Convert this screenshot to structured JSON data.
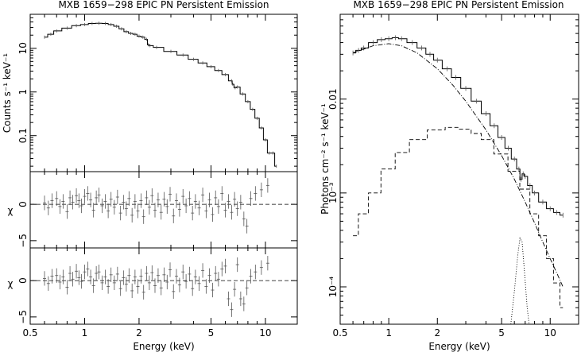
{
  "chart_data": [
    {
      "id": "left-spectrum",
      "type": "line",
      "title": "MXB 1659−298    EPIC PN    Persistent Emission",
      "xlabel": "",
      "ylabel": "Counts s⁻¹ keV⁻¹",
      "x_scale": "log",
      "y_scale": "log",
      "xlim": [
        0.5,
        15
      ],
      "ylim": [
        0.015,
        60
      ],
      "y_ticks": [
        0.1,
        1,
        10
      ],
      "y_tick_labels": [
        "0.1",
        "1",
        "10"
      ],
      "series": [
        {
          "points": [
            [
              0.6,
              18
            ],
            [
              0.65,
              21
            ],
            [
              0.7,
              25
            ],
            [
              0.8,
              29
            ],
            [
              0.9,
              33
            ],
            [
              1.0,
              35
            ],
            [
              1.1,
              37
            ],
            [
              1.2,
              37.5
            ],
            [
              1.3,
              37
            ],
            [
              1.4,
              35
            ],
            [
              1.5,
              32
            ],
            [
              1.6,
              28
            ],
            [
              1.7,
              24
            ],
            [
              1.8,
              22
            ],
            [
              1.9,
              21
            ],
            [
              2.0,
              19
            ],
            [
              2.1,
              18
            ],
            [
              2.2,
              16
            ],
            [
              2.25,
              12
            ],
            [
              2.3,
              11.5
            ],
            [
              2.5,
              10.5
            ],
            [
              3.0,
              8.5
            ],
            [
              3.5,
              7
            ],
            [
              4.0,
              5.6
            ],
            [
              4.5,
              4.6
            ],
            [
              5.0,
              3.8
            ],
            [
              5.5,
              3.1
            ],
            [
              6.0,
              2.5
            ],
            [
              6.5,
              1.8
            ],
            [
              6.6,
              1.5
            ],
            [
              6.8,
              1.25
            ],
            [
              7.0,
              1.3
            ],
            [
              7.5,
              0.9
            ],
            [
              8.0,
              0.6
            ],
            [
              8.5,
              0.4
            ],
            [
              9.0,
              0.25
            ],
            [
              9.5,
              0.15
            ],
            [
              10.0,
              0.08
            ],
            [
              10.5,
              0.04
            ],
            [
              11.0,
              0.04
            ],
            [
              11.5,
              0.02
            ]
          ]
        }
      ]
    },
    {
      "id": "left-residuals-1",
      "type": "scatter",
      "xlabel": "",
      "ylabel": "χ",
      "x_scale": "log",
      "xlim": [
        0.5,
        15
      ],
      "ylim": [
        -6,
        4.5
      ],
      "y_ticks": [
        -5,
        0
      ],
      "y_tick_labels": [
        "−5",
        "0"
      ],
      "residuals": [
        [
          0.6,
          0.2
        ],
        [
          0.63,
          -0.5
        ],
        [
          0.66,
          0.5
        ],
        [
          0.7,
          0.8
        ],
        [
          0.73,
          -0.3
        ],
        [
          0.76,
          0.4
        ],
        [
          0.8,
          -1.0
        ],
        [
          0.83,
          0.9
        ],
        [
          0.86,
          0.3
        ],
        [
          0.9,
          1.2
        ],
        [
          0.93,
          0.5
        ],
        [
          0.96,
          -0.2
        ],
        [
          1.0,
          1.1
        ],
        [
          1.04,
          1.5
        ],
        [
          1.08,
          0.6
        ],
        [
          1.12,
          -0.8
        ],
        [
          1.16,
          0.9
        ],
        [
          1.2,
          1.3
        ],
        [
          1.25,
          -0.2
        ],
        [
          1.3,
          0.4
        ],
        [
          1.35,
          -0.9
        ],
        [
          1.4,
          0.7
        ],
        [
          1.46,
          -0.4
        ],
        [
          1.52,
          1.0
        ],
        [
          1.58,
          -1.2
        ],
        [
          1.64,
          0.3
        ],
        [
          1.7,
          -0.6
        ],
        [
          1.76,
          0.8
        ],
        [
          1.83,
          -1.5
        ],
        [
          1.9,
          0.4
        ],
        [
          1.97,
          -0.9
        ],
        [
          2.05,
          0.5
        ],
        [
          2.12,
          -1.7
        ],
        [
          2.2,
          0.9
        ],
        [
          2.28,
          -0.4
        ],
        [
          2.36,
          1.2
        ],
        [
          2.45,
          -0.8
        ],
        [
          2.55,
          0.6
        ],
        [
          2.65,
          -1.1
        ],
        [
          2.75,
          0.7
        ],
        [
          2.86,
          -0.3
        ],
        [
          2.97,
          1.4
        ],
        [
          3.1,
          -1.6
        ],
        [
          3.22,
          0.5
        ],
        [
          3.35,
          -0.7
        ],
        [
          3.5,
          1.1
        ],
        [
          3.64,
          -0.2
        ],
        [
          3.8,
          0.8
        ],
        [
          3.95,
          -1.2
        ],
        [
          4.1,
          0.4
        ],
        [
          4.3,
          -0.5
        ],
        [
          4.5,
          1.3
        ],
        [
          4.7,
          -0.9
        ],
        [
          4.9,
          0.6
        ],
        [
          5.1,
          -1.4
        ],
        [
          5.3,
          0.9
        ],
        [
          5.5,
          -0.3
        ],
        [
          5.75,
          1.5
        ],
        [
          6.0,
          -0.8
        ],
        [
          6.25,
          0.4
        ],
        [
          6.5,
          -1.1
        ],
        [
          6.75,
          0.7
        ],
        [
          7.0,
          -0.6
        ],
        [
          7.3,
          0.3
        ],
        [
          7.6,
          -2.0
        ],
        [
          7.9,
          -3.0
        ],
        [
          8.3,
          0.8
        ],
        [
          8.8,
          1.5
        ],
        [
          9.5,
          2.0
        ],
        [
          10.3,
          2.6
        ]
      ]
    },
    {
      "id": "left-residuals-2",
      "type": "scatter",
      "xlabel": "Energy (keV)",
      "ylabel": "χ",
      "x_scale": "log",
      "xlim": [
        0.5,
        15
      ],
      "ylim": [
        -6,
        4.5
      ],
      "x_ticks": [
        0.5,
        1,
        2,
        5,
        10
      ],
      "x_tick_labels": [
        "0.5",
        "1",
        "2",
        "5",
        "10"
      ],
      "y_ticks": [
        -5,
        0
      ],
      "y_tick_labels": [
        "−5",
        "0"
      ],
      "residuals": [
        [
          0.6,
          0.3
        ],
        [
          0.63,
          -0.4
        ],
        [
          0.66,
          0.6
        ],
        [
          0.7,
          0.7
        ],
        [
          0.73,
          -0.2
        ],
        [
          0.76,
          0.5
        ],
        [
          0.8,
          -0.9
        ],
        [
          0.83,
          1.0
        ],
        [
          0.86,
          0.2
        ],
        [
          0.9,
          1.3
        ],
        [
          0.93,
          0.4
        ],
        [
          0.96,
          -0.1
        ],
        [
          1.0,
          1.2
        ],
        [
          1.04,
          1.6
        ],
        [
          1.08,
          0.5
        ],
        [
          1.12,
          -0.7
        ],
        [
          1.16,
          1.0
        ],
        [
          1.2,
          1.2
        ],
        [
          1.25,
          -0.3
        ],
        [
          1.3,
          0.5
        ],
        [
          1.35,
          -0.8
        ],
        [
          1.4,
          0.8
        ],
        [
          1.46,
          -0.3
        ],
        [
          1.52,
          0.9
        ],
        [
          1.58,
          -1.1
        ],
        [
          1.64,
          0.4
        ],
        [
          1.7,
          -0.5
        ],
        [
          1.76,
          0.7
        ],
        [
          1.83,
          -1.4
        ],
        [
          1.9,
          0.5
        ],
        [
          1.97,
          -0.8
        ],
        [
          2.05,
          0.6
        ],
        [
          2.12,
          -1.6
        ],
        [
          2.2,
          1.0
        ],
        [
          2.28,
          -0.3
        ],
        [
          2.36,
          1.1
        ],
        [
          2.45,
          -0.7
        ],
        [
          2.55,
          0.7
        ],
        [
          2.65,
          -1.0
        ],
        [
          2.75,
          0.8
        ],
        [
          2.86,
          -0.2
        ],
        [
          2.97,
          1.5
        ],
        [
          3.1,
          -1.5
        ],
        [
          3.22,
          0.6
        ],
        [
          3.35,
          -0.6
        ],
        [
          3.5,
          1.2
        ],
        [
          3.64,
          -0.1
        ],
        [
          3.8,
          0.9
        ],
        [
          3.95,
          -1.1
        ],
        [
          4.1,
          0.5
        ],
        [
          4.3,
          -0.4
        ],
        [
          4.5,
          1.4
        ],
        [
          4.7,
          -0.8
        ],
        [
          4.9,
          0.7
        ],
        [
          5.1,
          -1.3
        ],
        [
          5.3,
          1.0
        ],
        [
          5.5,
          0.2
        ],
        [
          5.75,
          1.6
        ],
        [
          6.0,
          2.0
        ],
        [
          6.25,
          -2.5
        ],
        [
          6.5,
          -4.0
        ],
        [
          6.75,
          -1.2
        ],
        [
          7.0,
          2.2
        ],
        [
          7.3,
          -2.5
        ],
        [
          7.6,
          -3.2
        ],
        [
          7.9,
          -1.0
        ],
        [
          8.3,
          0.6
        ],
        [
          8.8,
          1.2
        ],
        [
          9.5,
          1.8
        ],
        [
          10.3,
          2.4
        ]
      ]
    },
    {
      "id": "right-unfolded",
      "type": "line",
      "title": "MXB 1659−298    EPIC PN    Persistent Emission",
      "xlabel": "Energy (keV)",
      "ylabel": "Photons cm⁻² s⁻¹ keV⁻¹",
      "x_scale": "log",
      "y_scale": "log",
      "xlim": [
        0.5,
        15
      ],
      "ylim": [
        4e-05,
        0.08
      ],
      "x_ticks": [
        0.5,
        1,
        2,
        5,
        10
      ],
      "x_tick_labels": [
        "0.5",
        "1",
        "2",
        "5",
        "10"
      ],
      "y_ticks": [
        0.0001,
        0.001,
        0.01
      ],
      "y_tick_labels": [
        "10⁻⁴",
        "10⁻³",
        "0.01"
      ],
      "series": [
        {
          "points": [
            [
              0.6,
              0.031
            ],
            [
              0.65,
              0.033
            ],
            [
              0.7,
              0.035
            ],
            [
              0.8,
              0.04
            ],
            [
              0.9,
              0.043
            ],
            [
              1.0,
              0.044
            ],
            [
              1.1,
              0.045
            ],
            [
              1.2,
              0.044
            ],
            [
              1.4,
              0.04
            ],
            [
              1.6,
              0.035
            ],
            [
              1.8,
              0.03
            ],
            [
              2.0,
              0.026
            ],
            [
              2.3,
              0.021
            ],
            [
              2.6,
              0.017
            ],
            [
              3.0,
              0.013
            ],
            [
              3.5,
              0.0095
            ],
            [
              4.0,
              0.007
            ],
            [
              4.5,
              0.0052
            ],
            [
              5.0,
              0.0039
            ],
            [
              5.5,
              0.003
            ],
            [
              6.0,
              0.0023
            ],
            [
              6.4,
              0.0018
            ],
            [
              6.6,
              0.0014
            ],
            [
              6.8,
              0.0016
            ],
            [
              7.0,
              0.0015
            ],
            [
              7.5,
              0.0012
            ],
            [
              8.0,
              0.001
            ],
            [
              9.0,
              0.0008
            ],
            [
              10.0,
              0.00068
            ],
            [
              11.0,
              0.00062
            ],
            [
              12.0,
              0.00058
            ]
          ]
        },
        {
          "points": [
            [
              0.6,
              0.031
            ],
            [
              0.8,
              0.037
            ],
            [
              1.0,
              0.039
            ],
            [
              1.2,
              0.037
            ],
            [
              1.5,
              0.031
            ],
            [
              2.0,
              0.021
            ],
            [
              2.5,
              0.014
            ],
            [
              3.0,
              0.0095
            ],
            [
              4.0,
              0.0047
            ],
            [
              5.0,
              0.0025
            ],
            [
              6.0,
              0.0014
            ],
            [
              7.0,
              0.0008
            ],
            [
              8.0,
              0.00048
            ],
            [
              9.0,
              0.0003
            ],
            [
              10.0,
              0.0002
            ],
            [
              11.0,
              0.00014
            ],
            [
              12.0,
              0.0001
            ]
          ]
        },
        {
          "points": [
            [
              0.6,
              0.00035
            ],
            [
              0.7,
              0.0006
            ],
            [
              0.8,
              0.001
            ],
            [
              1.0,
              0.0018
            ],
            [
              1.2,
              0.0027
            ],
            [
              1.5,
              0.0037
            ],
            [
              2.0,
              0.0047
            ],
            [
              2.5,
              0.005
            ],
            [
              3.0,
              0.0048
            ],
            [
              3.5,
              0.0043
            ],
            [
              4.0,
              0.0037
            ],
            [
              5.0,
              0.0026
            ],
            [
              6.0,
              0.0017
            ],
            [
              7.0,
              0.0011
            ],
            [
              8.0,
              0.0006
            ],
            [
              9.0,
              0.00035
            ],
            [
              10.0,
              0.0002
            ],
            [
              11.0,
              0.00011
            ],
            [
              12.0,
              6e-05
            ]
          ]
        },
        {
          "points": [
            [
              5.7,
              4e-05
            ],
            [
              6.0,
              9e-05
            ],
            [
              6.3,
              0.00022
            ],
            [
              6.5,
              0.00033
            ],
            [
              6.7,
              0.0003
            ],
            [
              6.9,
              0.00016
            ],
            [
              7.2,
              6e-05
            ],
            [
              7.4,
              4e-05
            ]
          ]
        }
      ]
    }
  ]
}
